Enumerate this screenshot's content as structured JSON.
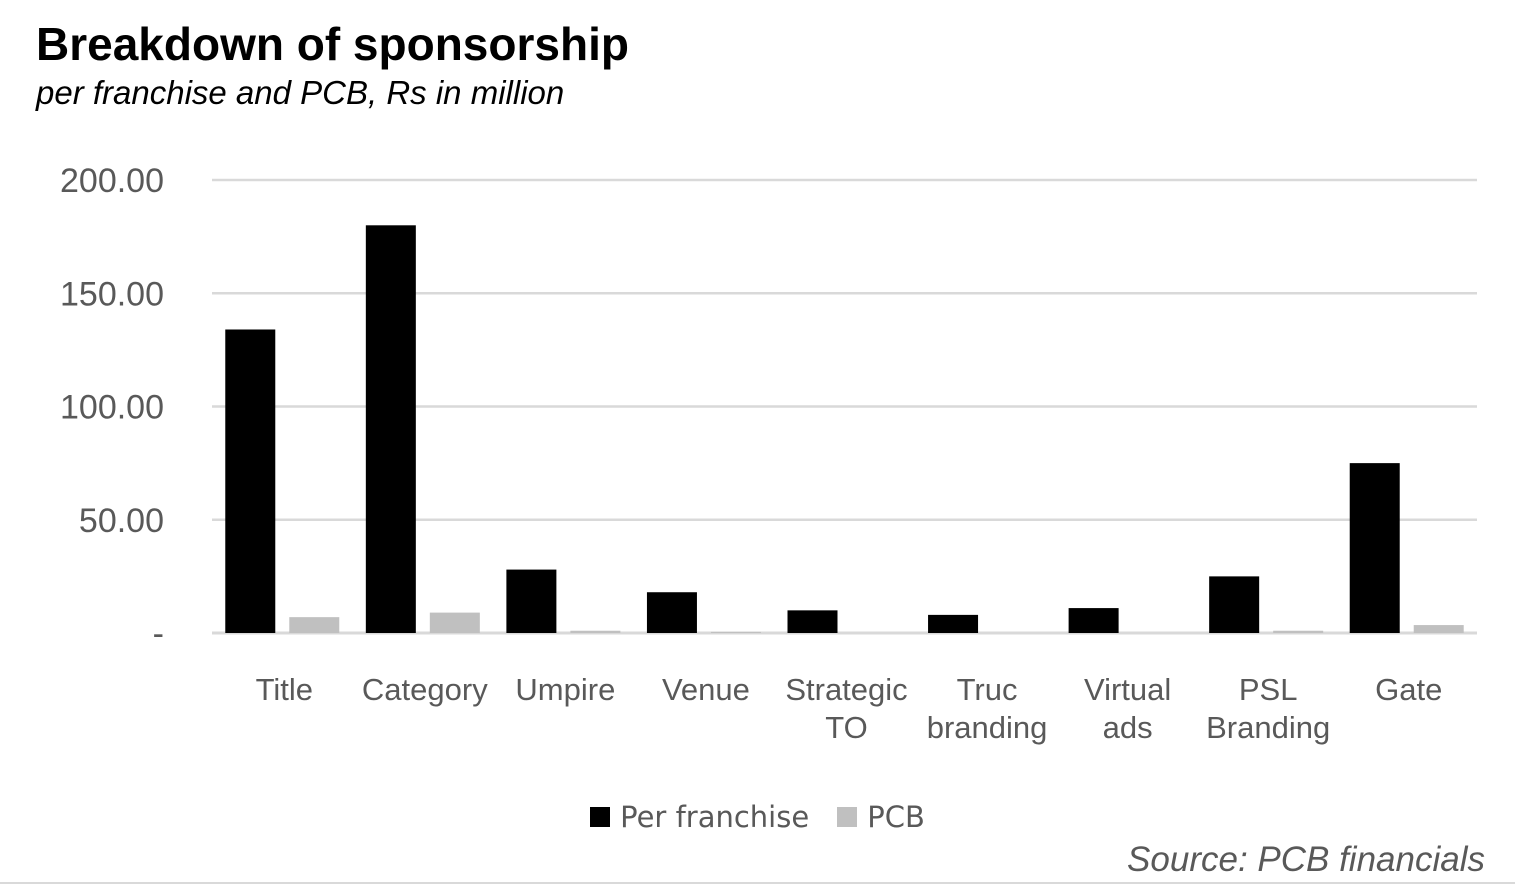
{
  "header": {
    "title": "Breakdown of sponsorship",
    "subtitle": "per franchise and PCB, Rs in million"
  },
  "source": "Source: PCB financials",
  "colors": {
    "per_franchise": "#000000",
    "pcb": "#c0c0c0",
    "gridline": "#d9d9d9",
    "axis_text": "#595959"
  },
  "chart_data": {
    "type": "bar",
    "categories": [
      [
        "Title"
      ],
      [
        "Category"
      ],
      [
        "Umpire"
      ],
      [
        "Venue"
      ],
      [
        "Strategic",
        "TO"
      ],
      [
        "Truc",
        "branding"
      ],
      [
        "Virtual",
        "ads"
      ],
      [
        "PSL",
        "Branding"
      ],
      [
        "Gate"
      ]
    ],
    "series": [
      {
        "name": "Per franchise",
        "color": "#000000",
        "values": [
          134,
          180,
          28,
          18,
          10,
          8,
          11,
          25,
          75
        ]
      },
      {
        "name": "PCB",
        "color": "#c0c0c0",
        "values": [
          7,
          9,
          1,
          0.5,
          0,
          0,
          0,
          1,
          3.5
        ]
      }
    ],
    "ylim": [
      0,
      200
    ],
    "yticks": [
      {
        "value": 0,
        "label": "-"
      },
      {
        "value": 50,
        "label": "50.00"
      },
      {
        "value": 100,
        "label": "100.00"
      },
      {
        "value": 150,
        "label": "150.00"
      },
      {
        "value": 200,
        "label": "200.00"
      }
    ],
    "grid": true,
    "legend_position": "bottom"
  }
}
